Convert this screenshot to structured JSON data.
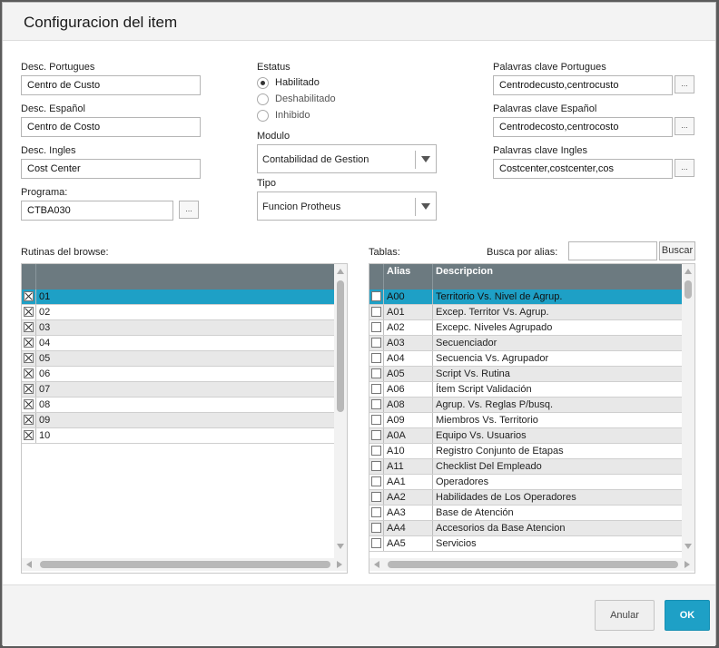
{
  "dialog": {
    "title": "Configuracion del item"
  },
  "fields": {
    "desc_portugues": {
      "label": "Desc. Portugues",
      "value": "Centro de Custo"
    },
    "desc_espanol": {
      "label": "Desc. Español",
      "value": "Centro de Costo"
    },
    "desc_ingles": {
      "label": "Desc. Ingles",
      "value": "Cost Center"
    },
    "programa": {
      "label": "Programa:",
      "value": "CTBA030",
      "lookup": "..."
    }
  },
  "estatus": {
    "label": "Estatus",
    "options": [
      "Habilitado",
      "Deshabilitado",
      "Inhibido"
    ],
    "selected": "Habilitado"
  },
  "modulo": {
    "label": "Modulo",
    "value": "Contabilidad de Gestion"
  },
  "tipo": {
    "label": "Tipo",
    "value": "Funcion Protheus"
  },
  "keywords": {
    "portugues": {
      "label": "Palavras clave Portugues",
      "value": "Centrodecusto,centrocusto",
      "lookup": "..."
    },
    "espanol": {
      "label": "Palavras clave Español",
      "value": "Centrodecosto,centrocosto",
      "lookup": "..."
    },
    "ingles": {
      "label": "Palavras clave Ingles",
      "value": "Costcenter,costcenter,cos",
      "lookup": "..."
    }
  },
  "rutinas": {
    "label": "Rutinas del browse:",
    "rows": [
      {
        "value": "01",
        "checked": true
      },
      {
        "value": "02",
        "checked": true
      },
      {
        "value": "03",
        "checked": true
      },
      {
        "value": "04",
        "checked": true
      },
      {
        "value": "05",
        "checked": true
      },
      {
        "value": "06",
        "checked": true
      },
      {
        "value": "07",
        "checked": true
      },
      {
        "value": "08",
        "checked": true
      },
      {
        "value": "09",
        "checked": true
      },
      {
        "value": "10",
        "checked": true
      }
    ],
    "selected_row": 0
  },
  "tablas": {
    "label": "Tablas:",
    "search_label": "Busca por alias:",
    "search_value": "",
    "search_button": "Buscar",
    "columns": [
      "Alias",
      "Descripcion"
    ],
    "rows": [
      {
        "alias": "A00",
        "desc": "Territorio Vs. Nivel de Agrup.",
        "checked": false
      },
      {
        "alias": "A01",
        "desc": "Excep. Territor Vs. Agrup.",
        "checked": false
      },
      {
        "alias": "A02",
        "desc": "Excepc. Niveles Agrupado",
        "checked": false
      },
      {
        "alias": "A03",
        "desc": "Secuenciador",
        "checked": false
      },
      {
        "alias": "A04",
        "desc": "Secuencia Vs. Agrupador",
        "checked": false
      },
      {
        "alias": "A05",
        "desc": "Script Vs. Rutina",
        "checked": false
      },
      {
        "alias": "A06",
        "desc": "Ítem Script Validación",
        "checked": false
      },
      {
        "alias": "A08",
        "desc": "Agrup. Vs. Reglas P/busq.",
        "checked": false
      },
      {
        "alias": "A09",
        "desc": "Miembros Vs. Territorio",
        "checked": false
      },
      {
        "alias": "A0A",
        "desc": "Equipo Vs. Usuarios",
        "checked": false
      },
      {
        "alias": "A10",
        "desc": "Registro Conjunto de Etapas",
        "checked": false
      },
      {
        "alias": "A11",
        "desc": "Checklist Del Empleado",
        "checked": false
      },
      {
        "alias": "AA1",
        "desc": "Operadores",
        "checked": false
      },
      {
        "alias": "AA2",
        "desc": "Habilidades de Los Operadores",
        "checked": false
      },
      {
        "alias": "AA3",
        "desc": "Base de Atención",
        "checked": false
      },
      {
        "alias": "AA4",
        "desc": "Accesorios da Base Atencion",
        "checked": false
      },
      {
        "alias": "AA5",
        "desc": "Servicios",
        "checked": false
      }
    ],
    "selected_row": 0
  },
  "footer": {
    "cancel_label": "Anular",
    "ok_label": "OK"
  },
  "colors": {
    "accent": "#1ea0c6",
    "header": "#6c7a80"
  }
}
